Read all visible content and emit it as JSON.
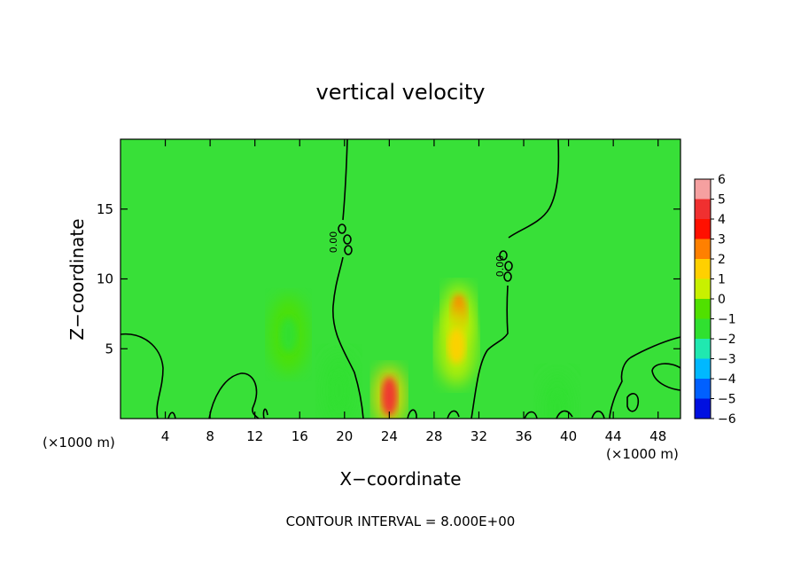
{
  "chart_data": {
    "type": "heatmap",
    "title": "vertical velocity",
    "xlabel": "X−coordinate",
    "ylabel": "Z−coordinate",
    "x_unit_left": "(×1000 m)",
    "x_unit_right": "(×1000 m)",
    "xlim": [
      0,
      50
    ],
    "ylim": [
      0,
      20
    ],
    "x_ticks": [
      4,
      8,
      12,
      16,
      20,
      24,
      28,
      32,
      36,
      40,
      44,
      48
    ],
    "y_ticks": [
      5,
      10,
      15
    ],
    "colorbar": {
      "levels": [
        6,
        5,
        4,
        3,
        2,
        1,
        0,
        -1,
        -2,
        -3,
        -4,
        -5,
        -6
      ],
      "tick_labels": [
        "6",
        "5",
        "4",
        "3",
        "2",
        "1",
        "0",
        "−1",
        "−2",
        "−3",
        "−4",
        "−5",
        "−6"
      ],
      "colors": [
        "#f5a0a0",
        "#f03030",
        "#ff1000",
        "#ff8000",
        "#ffd000",
        "#c8f000",
        "#50e000",
        "#30e030",
        "#20e8b0",
        "#00b8ff",
        "#0060ff",
        "#0010e0",
        "#5000b0"
      ]
    },
    "field_features": [
      {
        "kind": "updraft",
        "x": 24,
        "z": 1.6,
        "value": 4.5
      },
      {
        "kind": "updraft",
        "x": 30.2,
        "z": 7.5,
        "value": 2.5
      },
      {
        "kind": "updraft",
        "x": 30,
        "z": 5.2,
        "value": 1.5
      },
      {
        "kind": "downdraft",
        "x": 19.5,
        "z": 2,
        "value": -1.2
      },
      {
        "kind": "downdraft",
        "x": 15,
        "z": 6,
        "value": -0.8
      },
      {
        "kind": "downdraft",
        "x": 39,
        "z": 0.6,
        "value": -1.5
      }
    ],
    "contour_label": "0.00",
    "footer": "CONTOUR INTERVAL = 8.000E+00"
  }
}
